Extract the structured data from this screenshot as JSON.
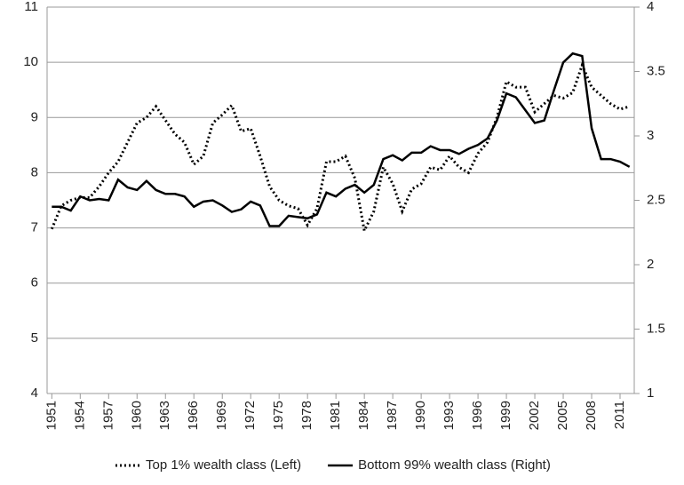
{
  "chart_data": {
    "type": "line",
    "x": [
      1951,
      1952,
      1953,
      1954,
      1955,
      1956,
      1957,
      1958,
      1959,
      1960,
      1961,
      1962,
      1963,
      1964,
      1965,
      1966,
      1967,
      1968,
      1969,
      1970,
      1971,
      1972,
      1973,
      1974,
      1975,
      1976,
      1977,
      1978,
      1979,
      1980,
      1981,
      1982,
      1983,
      1984,
      1985,
      1986,
      1987,
      1988,
      1989,
      1990,
      1991,
      1992,
      1993,
      1994,
      1995,
      1996,
      1997,
      1998,
      1999,
      2000,
      2001,
      2002,
      2003,
      2004,
      2005,
      2006,
      2007,
      2008,
      2009,
      2010,
      2011,
      2012
    ],
    "xlim": [
      1950.5,
      2012.5
    ],
    "xticks": [
      1951,
      1954,
      1957,
      1960,
      1963,
      1966,
      1969,
      1972,
      1975,
      1978,
      1981,
      1984,
      1987,
      1990,
      1993,
      1996,
      1999,
      2002,
      2005,
      2008,
      2011
    ],
    "ylim": [
      4,
      11
    ],
    "yticks": [
      4,
      5,
      6,
      7,
      8,
      9,
      10,
      11
    ],
    "y2lim": [
      1,
      4
    ],
    "y2ticks": [
      1,
      1.5,
      2,
      2.5,
      3,
      3.5,
      4
    ],
    "grid": true,
    "legend": "bottom",
    "series": [
      {
        "name": "Top 1% wealth class (Left)",
        "color": "#000000",
        "dash": "dotted",
        "axis": "y",
        "values": [
          6.98,
          7.4,
          7.5,
          7.55,
          7.55,
          7.75,
          8.0,
          8.2,
          8.55,
          8.9,
          9.0,
          9.2,
          8.95,
          8.7,
          8.55,
          8.15,
          8.3,
          8.9,
          9.05,
          9.22,
          8.75,
          8.8,
          8.3,
          7.75,
          7.5,
          7.4,
          7.35,
          7.05,
          7.35,
          8.2,
          8.2,
          8.3,
          7.9,
          6.95,
          7.3,
          8.1,
          7.8,
          7.3,
          7.7,
          7.8,
          8.1,
          8.05,
          8.3,
          8.1,
          8.0,
          8.35,
          8.55,
          9.0,
          9.65,
          9.55,
          9.55,
          9.1,
          9.25,
          9.4,
          9.35,
          9.45,
          9.95,
          9.55,
          9.4,
          9.25,
          9.15,
          9.2
        ]
      },
      {
        "name": "Bottom 99% wealth class (Right)",
        "color": "#000000",
        "dash": "solid",
        "axis": "y2",
        "values": [
          2.45,
          2.45,
          2.42,
          2.53,
          2.5,
          2.51,
          2.5,
          2.66,
          2.6,
          2.58,
          2.65,
          2.58,
          2.55,
          2.55,
          2.53,
          2.45,
          2.49,
          2.5,
          2.46,
          2.41,
          2.43,
          2.49,
          2.46,
          2.3,
          2.3,
          2.38,
          2.37,
          2.36,
          2.39,
          2.56,
          2.53,
          2.59,
          2.62,
          2.56,
          2.62,
          2.82,
          2.85,
          2.81,
          2.87,
          2.87,
          2.92,
          2.89,
          2.89,
          2.86,
          2.9,
          2.93,
          2.98,
          3.12,
          3.33,
          3.3,
          3.2,
          3.1,
          3.12,
          3.35,
          3.57,
          3.64,
          3.62,
          3.06,
          2.82,
          2.82,
          2.8,
          2.76
        ]
      }
    ]
  }
}
